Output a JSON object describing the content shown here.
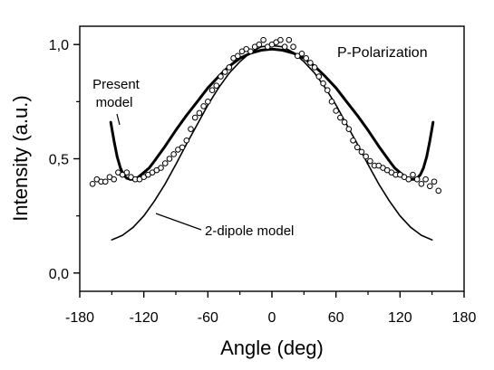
{
  "chart_data": {
    "type": "line",
    "title": "",
    "xlabel": "Angle (deg)",
    "ylabel": "Intensity (a.u.)",
    "xlim": [
      -180,
      180
    ],
    "ylim": [
      -0.08,
      1.08
    ],
    "x_ticks": [
      -180,
      -120,
      -60,
      0,
      60,
      120,
      180
    ],
    "x_tick_labels": [
      "-180",
      "-120",
      "-60",
      "0",
      "60",
      "120",
      "180"
    ],
    "y_ticks": [
      0.0,
      0.5,
      1.0
    ],
    "y_tick_labels": [
      "0,0",
      "0,5",
      "1,0"
    ],
    "panel_label": "P-Polarization",
    "grid": false,
    "annotations": [
      {
        "text": "Present",
        "target": "present-model"
      },
      {
        "text": "model",
        "target": "present-model"
      },
      {
        "text": "2-dipole model",
        "target": "2-dipole-model"
      }
    ],
    "series": [
      {
        "id": "present-model",
        "style": "thick-line",
        "x": [
          -151,
          -148,
          -145,
          -142,
          -139,
          -136,
          -133,
          -130,
          -125,
          -120,
          -115,
          -110,
          -100,
          -90,
          -80,
          -70,
          -60,
          -50,
          -40,
          -30,
          -20,
          -10,
          0,
          10,
          20,
          30,
          40,
          50,
          60,
          70,
          80,
          90,
          100,
          110,
          115,
          120,
          125,
          130,
          133,
          136,
          139,
          142,
          145,
          148,
          151
        ],
        "y": [
          0.66,
          0.58,
          0.51,
          0.46,
          0.43,
          0.415,
          0.41,
          0.41,
          0.42,
          0.44,
          0.46,
          0.49,
          0.555,
          0.625,
          0.69,
          0.75,
          0.81,
          0.86,
          0.905,
          0.94,
          0.962,
          0.975,
          0.98,
          0.975,
          0.962,
          0.94,
          0.905,
          0.86,
          0.81,
          0.75,
          0.69,
          0.625,
          0.555,
          0.49,
          0.46,
          0.44,
          0.42,
          0.41,
          0.41,
          0.415,
          0.43,
          0.46,
          0.51,
          0.58,
          0.66
        ]
      },
      {
        "id": "2-dipole-model",
        "style": "thin-line",
        "x": [
          -150,
          -140,
          -130,
          -120,
          -110,
          -100,
          -90,
          -80,
          -70,
          -60,
          -50,
          -40,
          -30,
          -20,
          -10,
          0,
          10,
          20,
          30,
          40,
          50,
          60,
          70,
          80,
          90,
          100,
          110,
          120,
          130,
          140,
          150
        ],
        "y": [
          0.145,
          0.165,
          0.2,
          0.25,
          0.315,
          0.39,
          0.475,
          0.565,
          0.65,
          0.735,
          0.81,
          0.875,
          0.925,
          0.965,
          0.99,
          0.995,
          0.99,
          0.965,
          0.925,
          0.875,
          0.81,
          0.735,
          0.65,
          0.565,
          0.475,
          0.39,
          0.315,
          0.25,
          0.2,
          0.165,
          0.145
        ]
      },
      {
        "id": "measured",
        "style": "open-circles",
        "x": [
          -168,
          -164,
          -160,
          -156,
          -152,
          -148,
          -144,
          -140,
          -136,
          -132,
          -128,
          -124,
          -120,
          -116,
          -112,
          -108,
          -104,
          -100,
          -96,
          -92,
          -88,
          -84,
          -80,
          -76,
          -72,
          -68,
          -64,
          -60,
          -56,
          -52,
          -48,
          -44,
          -40,
          -36,
          -32,
          -28,
          -24,
          -20,
          -16,
          -12,
          -8,
          -4,
          0,
          4,
          8,
          12,
          16,
          20,
          24,
          28,
          32,
          36,
          40,
          44,
          48,
          52,
          56,
          60,
          64,
          68,
          72,
          76,
          80,
          84,
          88,
          92,
          96,
          100,
          104,
          108,
          112,
          116,
          120,
          124,
          128,
          132,
          136,
          140,
          144,
          148,
          152,
          156
        ],
        "y": [
          0.39,
          0.41,
          0.4,
          0.4,
          0.42,
          0.41,
          0.44,
          0.43,
          0.44,
          0.42,
          0.41,
          0.41,
          0.42,
          0.43,
          0.44,
          0.45,
          0.46,
          0.48,
          0.5,
          0.52,
          0.54,
          0.55,
          0.58,
          0.63,
          0.68,
          0.7,
          0.73,
          0.75,
          0.8,
          0.82,
          0.86,
          0.88,
          0.9,
          0.94,
          0.95,
          0.97,
          0.98,
          0.97,
          0.99,
          1.0,
          1.02,
          0.99,
          1.0,
          1.01,
          1.02,
          0.99,
          1.02,
          0.99,
          0.95,
          0.96,
          0.94,
          0.92,
          0.9,
          0.86,
          0.83,
          0.8,
          0.75,
          0.71,
          0.68,
          0.66,
          0.63,
          0.58,
          0.55,
          0.53,
          0.51,
          0.49,
          0.47,
          0.47,
          0.46,
          0.45,
          0.44,
          0.43,
          0.43,
          0.42,
          0.41,
          0.43,
          0.41,
          0.39,
          0.41,
          0.38,
          0.4,
          0.36
        ]
      }
    ]
  }
}
